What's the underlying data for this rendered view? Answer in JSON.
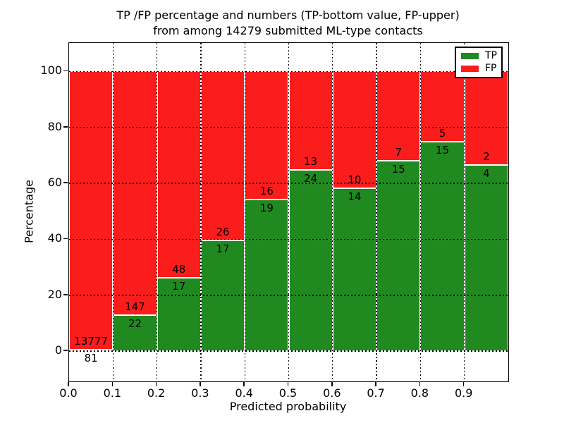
{
  "chart_data": {
    "type": "bar",
    "stacked": true,
    "normalized": "percent",
    "title_line1": "TP /FP percentage and numbers (TP-bottom value, FP-upper)",
    "title_line2": "from among 14279 submitted ML-type contacts",
    "xlabel": "Predicted probability",
    "ylabel": "Percentage",
    "xlim": [
      0.0,
      1.0
    ],
    "ylim": [
      -10.8,
      110.2
    ],
    "xticks": [
      "0.0",
      "0.1",
      "0.2",
      "0.3",
      "0.4",
      "0.5",
      "0.6",
      "0.7",
      "0.8",
      "0.9"
    ],
    "xtick_values": [
      0.0,
      0.1,
      0.2,
      0.3,
      0.4,
      0.5,
      0.6,
      0.7,
      0.8,
      0.9
    ],
    "yticks": [
      "0",
      "20",
      "40",
      "60",
      "80",
      "100"
    ],
    "ytick_values": [
      0,
      20,
      40,
      60,
      80,
      100
    ],
    "grid": true,
    "grid_style": "dotted",
    "legend_position": "upper-right",
    "colors": {
      "tp": "#208a20",
      "fp": "#fb1c1c",
      "bar_edge": "#ffffff",
      "grid": "#000000",
      "background": "#ffffff"
    },
    "legend": [
      {
        "label": "TP",
        "color": "#208a20"
      },
      {
        "label": "FP",
        "color": "#fb1c1c"
      }
    ],
    "bins": [
      {
        "range": [
          0.0,
          0.1
        ],
        "tp": 81,
        "fp": 13777
      },
      {
        "range": [
          0.1,
          0.2
        ],
        "tp": 22,
        "fp": 147
      },
      {
        "range": [
          0.2,
          0.3
        ],
        "tp": 17,
        "fp": 48
      },
      {
        "range": [
          0.3,
          0.4
        ],
        "tp": 17,
        "fp": 26
      },
      {
        "range": [
          0.4,
          0.5
        ],
        "tp": 19,
        "fp": 16
      },
      {
        "range": [
          0.5,
          0.6
        ],
        "tp": 24,
        "fp": 13
      },
      {
        "range": [
          0.6,
          0.7
        ],
        "tp": 14,
        "fp": 10
      },
      {
        "range": [
          0.7,
          0.8
        ],
        "tp": 15,
        "fp": 7
      },
      {
        "range": [
          0.8,
          0.9
        ],
        "tp": 15,
        "fp": 5
      },
      {
        "range": [
          0.9,
          1.0
        ],
        "tp": 4,
        "fp": 2
      }
    ]
  }
}
